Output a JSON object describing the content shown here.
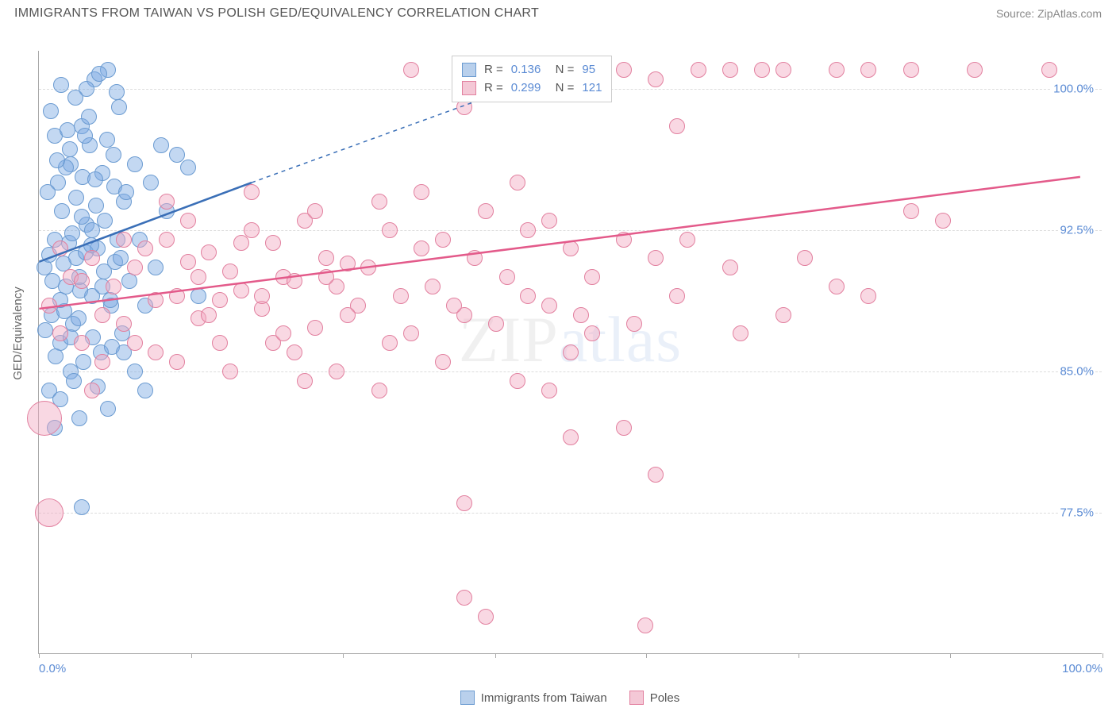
{
  "title": "IMMIGRANTS FROM TAIWAN VS POLISH GED/EQUIVALENCY CORRELATION CHART",
  "source_label": "Source: ZipAtlas.com",
  "ylabel": "GED/Equivalency",
  "watermark_a": "ZIP",
  "watermark_b": "atlas",
  "chart": {
    "type": "scatter",
    "background_color": "#ffffff",
    "grid_color": "#dddddd",
    "axis_color": "#aaaaaa",
    "xlim": [
      0,
      100
    ],
    "ylim": [
      70,
      102
    ],
    "x_tick_positions": [
      0,
      14.3,
      28.6,
      42.9,
      57.1,
      71.4,
      85.7,
      100
    ],
    "y_gridlines": [
      77.5,
      85.0,
      92.5,
      100.0
    ],
    "y_tick_labels": [
      "77.5%",
      "85.0%",
      "92.5%",
      "100.0%"
    ],
    "x_min_label": "0.0%",
    "x_max_label": "100.0%",
    "label_fontsize": 15,
    "label_color": "#5b8bd4",
    "series": [
      {
        "name": "Immigrants from Taiwan",
        "color_fill": "rgba(123,169,226,0.45)",
        "color_stroke": "#6b9bd1",
        "swatch_fill": "#b9d0ec",
        "swatch_border": "#6b9bd1",
        "R": "0.136",
        "N": "95",
        "marker_radius": 10,
        "trend": {
          "x1": 0,
          "y1": 90.8,
          "x2": 20,
          "y2": 95.0,
          "x2_dash": 42,
          "y2_dash": 99.5,
          "color": "#3a6fb7",
          "width": 2.5
        },
        "points": [
          [
            0.5,
            90.5
          ],
          [
            1.0,
            91.2
          ],
          [
            1.2,
            88.0
          ],
          [
            1.5,
            92.0
          ],
          [
            1.8,
            95.0
          ],
          [
            2.0,
            86.5
          ],
          [
            2.2,
            93.5
          ],
          [
            2.5,
            89.5
          ],
          [
            2.8,
            91.8
          ],
          [
            3.0,
            96.0
          ],
          [
            3.2,
            87.5
          ],
          [
            3.5,
            94.2
          ],
          [
            3.8,
            90.0
          ],
          [
            4.0,
            98.0
          ],
          [
            4.2,
            85.5
          ],
          [
            4.5,
            92.8
          ],
          [
            4.8,
            97.0
          ],
          [
            5.0,
            89.0
          ],
          [
            5.2,
            100.5
          ],
          [
            5.5,
            91.5
          ],
          [
            5.8,
            86.0
          ],
          [
            6.0,
            95.5
          ],
          [
            6.2,
            93.0
          ],
          [
            6.5,
            101.0
          ],
          [
            6.8,
            88.5
          ],
          [
            7.0,
            96.5
          ],
          [
            7.2,
            90.8
          ],
          [
            7.5,
            99.0
          ],
          [
            7.8,
            87.0
          ],
          [
            8.0,
            94.0
          ],
          [
            1.0,
            84.0
          ],
          [
            2.0,
            83.5
          ],
          [
            3.0,
            85.0
          ],
          [
            1.5,
            97.5
          ],
          [
            4.5,
            100.0
          ],
          [
            5.0,
            92.5
          ],
          [
            6.0,
            89.5
          ],
          [
            2.5,
            95.8
          ],
          [
            3.5,
            91.0
          ],
          [
            4.0,
            93.2
          ],
          [
            0.8,
            94.5
          ],
          [
            1.3,
            89.8
          ],
          [
            1.7,
            96.2
          ],
          [
            2.1,
            100.2
          ],
          [
            2.4,
            88.2
          ],
          [
            2.7,
            97.8
          ],
          [
            3.1,
            92.3
          ],
          [
            3.4,
            99.5
          ],
          [
            3.7,
            87.8
          ],
          [
            4.1,
            95.3
          ],
          [
            4.4,
            91.3
          ],
          [
            4.7,
            98.5
          ],
          [
            5.1,
            86.8
          ],
          [
            5.4,
            93.8
          ],
          [
            5.7,
            100.8
          ],
          [
            6.1,
            90.3
          ],
          [
            6.4,
            97.3
          ],
          [
            6.7,
            88.8
          ],
          [
            7.1,
            94.8
          ],
          [
            7.4,
            92.0
          ],
          [
            0.6,
            87.2
          ],
          [
            1.1,
            98.8
          ],
          [
            1.6,
            85.8
          ],
          [
            2.3,
            90.7
          ],
          [
            2.9,
            96.8
          ],
          [
            3.3,
            84.5
          ],
          [
            3.9,
            89.3
          ],
          [
            4.3,
            97.5
          ],
          [
            4.9,
            91.7
          ],
          [
            5.3,
            95.2
          ],
          [
            6.9,
            86.3
          ],
          [
            7.3,
            99.8
          ],
          [
            7.7,
            91.0
          ],
          [
            8.2,
            94.5
          ],
          [
            8.5,
            89.8
          ],
          [
            9.0,
            96.0
          ],
          [
            9.5,
            92.0
          ],
          [
            10.0,
            88.5
          ],
          [
            10.5,
            95.0
          ],
          [
            11.0,
            90.5
          ],
          [
            11.5,
            97.0
          ],
          [
            12.0,
            93.5
          ],
          [
            13.0,
            96.5
          ],
          [
            14.0,
            95.8
          ],
          [
            15.0,
            89.0
          ],
          [
            4.0,
            77.8
          ],
          [
            1.5,
            82.0
          ],
          [
            2.0,
            88.8
          ],
          [
            3.0,
            86.8
          ],
          [
            5.5,
            84.2
          ],
          [
            6.5,
            83.0
          ],
          [
            8.0,
            86.0
          ],
          [
            9.0,
            85.0
          ],
          [
            10.0,
            84.0
          ],
          [
            3.8,
            82.5
          ]
        ]
      },
      {
        "name": "Poles",
        "color_fill": "rgba(241,169,193,0.45)",
        "color_stroke": "#e2809f",
        "swatch_fill": "#f4c8d6",
        "swatch_border": "#e2809f",
        "R": "0.299",
        "N": "121",
        "marker_radius": 10,
        "trend": {
          "x1": 0,
          "y1": 88.3,
          "x2": 98,
          "y2": 95.3,
          "color": "#e35a8a",
          "width": 2.5
        },
        "points": [
          [
            1.0,
            88.5
          ],
          [
            2.0,
            87.0
          ],
          [
            3.0,
            90.0
          ],
          [
            4.0,
            86.5
          ],
          [
            5.0,
            91.0
          ],
          [
            6.0,
            88.0
          ],
          [
            7.0,
            89.5
          ],
          [
            8.0,
            87.5
          ],
          [
            9.0,
            90.5
          ],
          [
            10.0,
            91.5
          ],
          [
            11.0,
            86.0
          ],
          [
            12.0,
            92.0
          ],
          [
            13.0,
            89.0
          ],
          [
            14.0,
            90.8
          ],
          [
            15.0,
            87.8
          ],
          [
            16.0,
            91.3
          ],
          [
            17.0,
            88.8
          ],
          [
            18.0,
            90.3
          ],
          [
            19.0,
            89.3
          ],
          [
            20.0,
            92.5
          ],
          [
            21.0,
            88.3
          ],
          [
            22.0,
            91.8
          ],
          [
            23.0,
            90.0
          ],
          [
            24.0,
            89.8
          ],
          [
            25.0,
            93.0
          ],
          [
            26.0,
            87.3
          ],
          [
            27.0,
            91.0
          ],
          [
            28.0,
            89.5
          ],
          [
            29.0,
            90.7
          ],
          [
            30.0,
            88.5
          ],
          [
            32.0,
            94.0
          ],
          [
            34.0,
            89.0
          ],
          [
            36.0,
            91.5
          ],
          [
            38.0,
            92.0
          ],
          [
            40.0,
            88.0
          ],
          [
            42.0,
            93.5
          ],
          [
            44.0,
            90.0
          ],
          [
            46.0,
            89.0
          ],
          [
            48.0,
            93.0
          ],
          [
            50.0,
            91.5
          ],
          [
            35.0,
            101.0
          ],
          [
            40.0,
            99.0
          ],
          [
            45.0,
            95.0
          ],
          [
            50.0,
            81.5
          ],
          [
            52.0,
            87.0
          ],
          [
            55.0,
            101.0
          ],
          [
            58.0,
            100.5
          ],
          [
            60.0,
            98.0
          ],
          [
            62.0,
            101.0
          ],
          [
            65.0,
            101.0
          ],
          [
            68.0,
            101.0
          ],
          [
            70.0,
            101.0
          ],
          [
            75.0,
            101.0
          ],
          [
            78.0,
            101.0
          ],
          [
            82.0,
            101.0
          ],
          [
            88.0,
            101.0
          ],
          [
            95.0,
            101.0
          ],
          [
            40.0,
            73.0
          ],
          [
            42.0,
            72.0
          ],
          [
            57.0,
            71.5
          ],
          [
            28.0,
            85.0
          ],
          [
            32.0,
            84.0
          ],
          [
            38.0,
            85.5
          ],
          [
            45.0,
            84.5
          ],
          [
            50.0,
            86.0
          ],
          [
            55.0,
            82.0
          ],
          [
            58.0,
            79.5
          ],
          [
            40.0,
            78.0
          ],
          [
            35.0,
            87.0
          ],
          [
            25.0,
            84.5
          ],
          [
            18.0,
            85.0
          ],
          [
            22.0,
            86.5
          ],
          [
            48.0,
            88.5
          ],
          [
            52.0,
            90.0
          ],
          [
            55.0,
            92.0
          ],
          [
            58.0,
            91.0
          ],
          [
            60.0,
            89.0
          ],
          [
            65.0,
            90.5
          ],
          [
            70.0,
            88.0
          ],
          [
            75.0,
            89.5
          ],
          [
            82.0,
            93.5
          ],
          [
            85.0,
            93.0
          ],
          [
            78.0,
            89.0
          ],
          [
            48.0,
            84.0
          ],
          [
            43.0,
            87.5
          ],
          [
            37.0,
            89.5
          ],
          [
            33.0,
            92.5
          ],
          [
            29.0,
            88.0
          ],
          [
            26.0,
            93.5
          ],
          [
            23.0,
            87.0
          ],
          [
            20.0,
            94.5
          ],
          [
            17.0,
            86.5
          ],
          [
            14.0,
            93.0
          ],
          [
            11.0,
            88.8
          ],
          [
            8.0,
            92.0
          ],
          [
            6.0,
            85.5
          ],
          [
            4.0,
            89.8
          ],
          [
            2.0,
            91.5
          ],
          [
            1.0,
            77.5,
            18
          ],
          [
            0.5,
            82.5,
            22
          ],
          [
            12.0,
            94.0
          ],
          [
            15.0,
            90.0
          ],
          [
            19.0,
            91.8
          ],
          [
            24.0,
            86.0
          ],
          [
            31.0,
            90.5
          ],
          [
            36.0,
            94.5
          ],
          [
            41.0,
            91.0
          ],
          [
            46.0,
            92.5
          ],
          [
            51.0,
            88.0
          ],
          [
            56.0,
            87.5
          ],
          [
            61.0,
            92.0
          ],
          [
            66.0,
            87.0
          ],
          [
            72.0,
            91.0
          ],
          [
            5.0,
            84.0
          ],
          [
            9.0,
            86.5
          ],
          [
            13.0,
            85.5
          ],
          [
            16.0,
            88.0
          ],
          [
            21.0,
            89.0
          ],
          [
            27.0,
            90.0
          ],
          [
            33.0,
            86.5
          ],
          [
            39.0,
            88.5
          ]
        ]
      }
    ]
  },
  "legend_bottom": [
    {
      "label": "Immigrants from Taiwan",
      "fill": "#b9d0ec",
      "border": "#6b9bd1"
    },
    {
      "label": "Poles",
      "fill": "#f4c8d6",
      "border": "#e2809f"
    }
  ]
}
